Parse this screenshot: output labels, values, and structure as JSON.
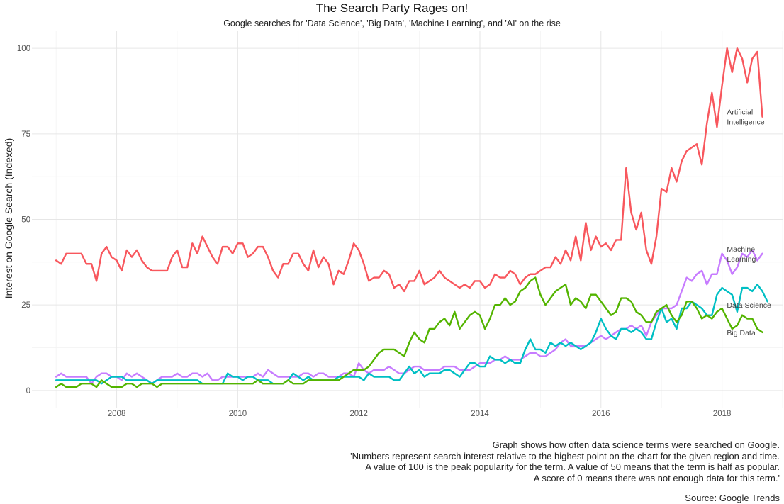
{
  "chart_data": {
    "type": "line",
    "title": "The Search Party Rages on!",
    "subtitle": "Google searches for 'Data Science', 'Big Data', 'Machine Learning', and 'AI' on the rise",
    "xlabel": "",
    "ylabel": "Interest on Google Search (Indexed)",
    "xlim": [
      2006.6,
      2019.0
    ],
    "ylim": [
      -5,
      105
    ],
    "x_ticks": [
      "2008",
      "2010",
      "2012",
      "2014",
      "2016",
      "2018"
    ],
    "y_ticks": [
      "0",
      "25",
      "50",
      "75",
      "100"
    ],
    "grid": true,
    "legend": "none",
    "x_start": 2007.0,
    "x_step": 0.08333,
    "series": [
      {
        "name": "Artificial Intelligence",
        "label_lines": [
          "Artificial",
          "Intelligence"
        ],
        "color": "#F8575D",
        "values": [
          38,
          37,
          40,
          40,
          40,
          40,
          37,
          37,
          32,
          40,
          42,
          39,
          38,
          35,
          41,
          39,
          41,
          38,
          36,
          35,
          35,
          35,
          35,
          39,
          41,
          36,
          36,
          43,
          40,
          45,
          42,
          39,
          37,
          42,
          42,
          40,
          43,
          43,
          39,
          40,
          42,
          42,
          39,
          35,
          33,
          37,
          37,
          40,
          40,
          37,
          35,
          41,
          36,
          39,
          37,
          31,
          35,
          34,
          38,
          43,
          41,
          37,
          32,
          33,
          33,
          35,
          34,
          30,
          31,
          29,
          32,
          32,
          35,
          31,
          32,
          33,
          35,
          33,
          32,
          31,
          30,
          31,
          30,
          32,
          32,
          30,
          31,
          34,
          33,
          33,
          35,
          34,
          31,
          33,
          34,
          34,
          35,
          36,
          36,
          39,
          37,
          41,
          38,
          45,
          38,
          49,
          41,
          45,
          42,
          43,
          41,
          44,
          44,
          65,
          52,
          47,
          52,
          41,
          37,
          45,
          59,
          58,
          65,
          61,
          67,
          70,
          71,
          72,
          66,
          78,
          87,
          77,
          89,
          100,
          93,
          100,
          97,
          90,
          97,
          99,
          80
        ]
      },
      {
        "name": "Machine Learning",
        "label_lines": [
          "Machine",
          "Learning"
        ],
        "color": "#C77CFF",
        "values": [
          4,
          5,
          4,
          4,
          4,
          4,
          4,
          2,
          4,
          5,
          5,
          4,
          4,
          3,
          5,
          4,
          5,
          4,
          3,
          2,
          3,
          4,
          4,
          4,
          5,
          4,
          4,
          5,
          5,
          4,
          5,
          3,
          3,
          4,
          4,
          4,
          4,
          4,
          4,
          4,
          5,
          4,
          6,
          5,
          4,
          4,
          4,
          4,
          4,
          5,
          5,
          4,
          5,
          5,
          4,
          4,
          4,
          5,
          5,
          4,
          8,
          6,
          5,
          6,
          6,
          6,
          7,
          6,
          5,
          5,
          6,
          7,
          7,
          6,
          6,
          6,
          6,
          7,
          7,
          7,
          6,
          6,
          6,
          7,
          8,
          8,
          8,
          9,
          9,
          10,
          9,
          9,
          9,
          10,
          11,
          11,
          10,
          10,
          11,
          12,
          14,
          15,
          13,
          13,
          13,
          13,
          14,
          15,
          16,
          15,
          16,
          17,
          18,
          18,
          19,
          18,
          19,
          16,
          20,
          22,
          24,
          24,
          24,
          25,
          29,
          33,
          32,
          34,
          35,
          31,
          34,
          34,
          40,
          38,
          34,
          36,
          40,
          39,
          41,
          38,
          40
        ]
      },
      {
        "name": "Data Science",
        "label_lines": [
          "Data Science"
        ],
        "color": "#00BFC4",
        "values": [
          3,
          3,
          3,
          3,
          3,
          3,
          3,
          3,
          3,
          2,
          3,
          4,
          4,
          4,
          3,
          3,
          3,
          3,
          3,
          2,
          3,
          3,
          3,
          3,
          3,
          3,
          3,
          3,
          3,
          2,
          2,
          2,
          2,
          2,
          5,
          4,
          4,
          3,
          4,
          4,
          3,
          3,
          3,
          2,
          2,
          2,
          3,
          5,
          4,
          3,
          4,
          3,
          3,
          3,
          3,
          3,
          4,
          4,
          4,
          4,
          4,
          3,
          5,
          4,
          4,
          4,
          4,
          3,
          3,
          5,
          7,
          5,
          6,
          4,
          5,
          5,
          5,
          6,
          6,
          5,
          4,
          6,
          8,
          8,
          7,
          7,
          10,
          9,
          9,
          8,
          9,
          8,
          8,
          12,
          15,
          12,
          12,
          11,
          14,
          13,
          14,
          13,
          14,
          13,
          12,
          13,
          14,
          17,
          21,
          18,
          16,
          15,
          18,
          18,
          17,
          18,
          17,
          15,
          15,
          20,
          24,
          20,
          21,
          18,
          24,
          24,
          26,
          25,
          24,
          22,
          22,
          28,
          30,
          29,
          28,
          23,
          30,
          30,
          29,
          31,
          29,
          26
        ]
      },
      {
        "name": "Big Data",
        "label_lines": [
          "Big Data"
        ],
        "color": "#53B400",
        "values": [
          1,
          2,
          1,
          1,
          1,
          2,
          2,
          2,
          1,
          3,
          2,
          1,
          1,
          1,
          2,
          2,
          1,
          2,
          2,
          2,
          1,
          2,
          2,
          2,
          2,
          2,
          2,
          2,
          2,
          2,
          2,
          2,
          2,
          2,
          2,
          2,
          2,
          2,
          2,
          2,
          3,
          2,
          2,
          2,
          2,
          2,
          3,
          2,
          2,
          2,
          3,
          3,
          3,
          3,
          3,
          3,
          3,
          4,
          5,
          6,
          6,
          6,
          7,
          9,
          11,
          12,
          12,
          12,
          11,
          10,
          14,
          17,
          15,
          14,
          18,
          18,
          20,
          21,
          19,
          23,
          18,
          20,
          22,
          23,
          22,
          18,
          21,
          25,
          25,
          27,
          25,
          26,
          29,
          30,
          32,
          33,
          28,
          25,
          27,
          29,
          30,
          31,
          25,
          27,
          26,
          24,
          28,
          28,
          26,
          24,
          22,
          23,
          27,
          27,
          26,
          23,
          22,
          20,
          20,
          23,
          24,
          25,
          22,
          20,
          22,
          26,
          26,
          24,
          21,
          22,
          21,
          23,
          24,
          21,
          18,
          19,
          22,
          21,
          21,
          18,
          17
        ]
      }
    ]
  },
  "caption": {
    "lines": [
      "Graph shows how often data science terms were searched on Google.",
      "'Numbers represent search interest relative to the highest point on the chart for the given region and time.",
      "A value of 100 is the peak popularity for the term. A value of 50 means that the term is half as popular.",
      "A score of 0 means there was not enough data for this term.'"
    ],
    "source": "Source: Google Trends"
  }
}
